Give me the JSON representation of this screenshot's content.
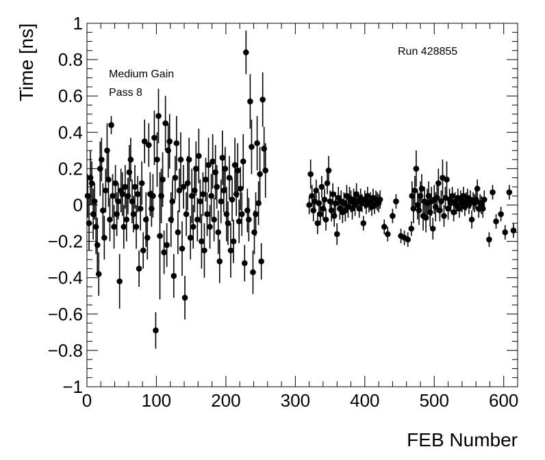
{
  "chart_data": {
    "type": "scatter",
    "xlabel": "FEB Number",
    "ylabel": "Time [ns]",
    "xlim": [
      0,
      620
    ],
    "ylim": [
      -1,
      1
    ],
    "x_tick_labels": [
      "0",
      "100",
      "200",
      "300",
      "400",
      "500",
      "600"
    ],
    "y_tick_labels": [
      "1",
      "0.8",
      "0.6",
      "0.4",
      "0.2",
      "0",
      "−0.2",
      "−0.4",
      "−0.6",
      "−0.8",
      "−1"
    ],
    "annotations": [
      "Medium Gain",
      "Pass 8",
      "Run 428855"
    ],
    "grid": false,
    "marker_color": "#000000",
    "series": [
      {
        "points": [
          [
            1,
            0.05,
            0.12
          ],
          [
            3,
            -0.1,
            0.15
          ],
          [
            5,
            0.15,
            0.15
          ],
          [
            7,
            0.12,
            0.12
          ],
          [
            9,
            -0.05,
            0.14
          ],
          [
            11,
            0.02,
            0.1
          ],
          [
            13,
            -0.12,
            0.15
          ],
          [
            15,
            -0.22,
            0.15
          ],
          [
            17,
            -0.38,
            0.12
          ],
          [
            19,
            0.2,
            0.15
          ],
          [
            21,
            0.25,
            0.12
          ],
          [
            23,
            -0.03,
            0.15
          ],
          [
            25,
            -0.18,
            0.12
          ],
          [
            27,
            0.08,
            0.12
          ],
          [
            29,
            0.3,
            0.15
          ],
          [
            31,
            0.14,
            0.15
          ],
          [
            33,
            -0.08,
            0.12
          ],
          [
            35,
            0.44,
            0.05
          ],
          [
            37,
            0.05,
            0.12
          ],
          [
            39,
            -0.12,
            0.12
          ],
          [
            41,
            0.12,
            0.1
          ],
          [
            43,
            -0.05,
            0.12
          ],
          [
            45,
            0.02,
            0.1
          ],
          [
            47,
            -0.42,
            0.15
          ],
          [
            49,
            0.08,
            0.12
          ],
          [
            51,
            0.06,
            0.12
          ],
          [
            53,
            -0.12,
            0.12
          ],
          [
            55,
            0.1,
            0.12
          ],
          [
            57,
            -0.08,
            0.12
          ],
          [
            59,
            0.05,
            0.1
          ],
          [
            61,
            0.18,
            0.15
          ],
          [
            63,
            0.25,
            0.12
          ],
          [
            65,
            0.02,
            0.12
          ],
          [
            67,
            -0.05,
            0.1
          ],
          [
            69,
            0.1,
            0.12
          ],
          [
            71,
            -0.12,
            0.12
          ],
          [
            73,
            0.06,
            0.1
          ],
          [
            75,
            -0.35,
            0.1
          ],
          [
            77,
            -0.02,
            0.12
          ],
          [
            79,
            0.12,
            0.12
          ],
          [
            81,
            -0.25,
            0.1
          ],
          [
            83,
            0.35,
            0.12
          ],
          [
            85,
            -0.08,
            0.15
          ],
          [
            87,
            -0.18,
            0.12
          ],
          [
            89,
            0.33,
            0.12
          ],
          [
            91,
            0.06,
            0.12
          ],
          [
            93,
            -0.02,
            0.1
          ],
          [
            95,
            0.05,
            0.12
          ],
          [
            97,
            0.37,
            0.15
          ],
          [
            99,
            -0.69,
            0.1
          ],
          [
            101,
            0.25,
            0.15
          ],
          [
            103,
            0.49,
            0.15
          ],
          [
            105,
            -0.17,
            0.35
          ],
          [
            107,
            0.05,
            0.15
          ],
          [
            109,
            0.14,
            0.15
          ],
          [
            111,
            -0.26,
            0.12
          ],
          [
            113,
            0.45,
            0.15
          ],
          [
            115,
            -0.22,
            0.12
          ],
          [
            117,
            0.3,
            0.15
          ],
          [
            119,
            0.35,
            0.15
          ],
          [
            121,
            -0.08,
            0.15
          ],
          [
            123,
            0.02,
            0.12
          ],
          [
            125,
            -0.39,
            0.12
          ],
          [
            127,
            0.15,
            0.12
          ],
          [
            129,
            0.34,
            0.15
          ],
          [
            131,
            -0.15,
            0.12
          ],
          [
            133,
            0.08,
            0.12
          ],
          [
            135,
            0.25,
            0.15
          ],
          [
            137,
            -0.24,
            0.15
          ],
          [
            139,
            0.1,
            0.12
          ],
          [
            141,
            -0.51,
            0.12
          ],
          [
            143,
            -0.05,
            0.12
          ],
          [
            145,
            0.12,
            0.15
          ],
          [
            147,
            0.25,
            0.12
          ],
          [
            149,
            -0.18,
            0.12
          ],
          [
            151,
            0.05,
            0.15
          ],
          [
            153,
            -0.12,
            0.12
          ],
          [
            155,
            0.08,
            0.12
          ],
          [
            157,
            0.2,
            0.15
          ],
          [
            159,
            -0.08,
            0.12
          ],
          [
            161,
            0.27,
            0.15
          ],
          [
            163,
            0.02,
            0.12
          ],
          [
            165,
            -0.2,
            0.15
          ],
          [
            167,
            0.06,
            0.12
          ],
          [
            169,
            -0.25,
            0.15
          ],
          [
            171,
            0.14,
            0.12
          ],
          [
            173,
            -0.05,
            0.12
          ],
          [
            175,
            0.22,
            0.15
          ],
          [
            177,
            -0.12,
            0.12
          ],
          [
            179,
            0.05,
            0.12
          ],
          [
            181,
            0.24,
            0.15
          ],
          [
            183,
            -0.08,
            0.12
          ],
          [
            185,
            0.18,
            0.15
          ],
          [
            187,
            0.1,
            0.12
          ],
          [
            189,
            -0.15,
            0.12
          ],
          [
            191,
            -0.31,
            0.12
          ],
          [
            193,
            0.02,
            0.12
          ],
          [
            195,
            0.26,
            0.15
          ],
          [
            197,
            0.08,
            0.12
          ],
          [
            199,
            0.2,
            0.12
          ],
          [
            201,
            -0.05,
            0.15
          ],
          [
            203,
            -0.1,
            0.12
          ],
          [
            205,
            0.15,
            0.12
          ],
          [
            207,
            -0.25,
            0.15
          ],
          [
            209,
            0.03,
            0.12
          ],
          [
            211,
            -0.2,
            0.12
          ],
          [
            213,
            0.22,
            0.15
          ],
          [
            215,
            0.06,
            0.12
          ],
          [
            217,
            0.19,
            0.15
          ],
          [
            219,
            -0.09,
            0.12
          ],
          [
            221,
            0.09,
            0.12
          ],
          [
            223,
            -0.05,
            0.12
          ],
          [
            225,
            0.24,
            0.15
          ],
          [
            227,
            -0.32,
            0.1
          ],
          [
            229,
            0.84,
            0.12
          ],
          [
            231,
            -0.03,
            0.12
          ],
          [
            233,
            -0.08,
            0.12
          ],
          [
            235,
            0.57,
            0.15
          ],
          [
            237,
            0.32,
            0.15
          ],
          [
            239,
            -0.37,
            0.12
          ],
          [
            241,
            -0.15,
            0.12
          ],
          [
            243,
            -0.05,
            0.12
          ],
          [
            245,
            0.34,
            0.15
          ],
          [
            247,
            0.01,
            0.12
          ],
          [
            249,
            0.17,
            0.15
          ],
          [
            251,
            -0.31,
            0.1
          ],
          [
            253,
            0.58,
            0.15
          ],
          [
            255,
            0.31,
            0.12
          ],
          [
            257,
            0.19,
            0.15
          ],
          [
            320,
            0.0,
            0.05
          ],
          [
            322,
            0.17,
            0.08
          ],
          [
            324,
            0.05,
            0.06
          ],
          [
            326,
            -0.03,
            0.06
          ],
          [
            328,
            0.02,
            0.06
          ],
          [
            330,
            0.08,
            0.06
          ],
          [
            332,
            -0.1,
            0.06
          ],
          [
            334,
            0.01,
            0.06
          ],
          [
            336,
            -0.05,
            0.06
          ],
          [
            338,
            0.1,
            0.06
          ],
          [
            340,
            -0.02,
            0.06
          ],
          [
            342,
            0.03,
            0.06
          ],
          [
            344,
            -0.08,
            0.06
          ],
          [
            346,
            0.12,
            0.06
          ],
          [
            348,
            0.19,
            0.08
          ],
          [
            350,
            0.02,
            0.06
          ],
          [
            352,
            -0.03,
            0.06
          ],
          [
            354,
            0.06,
            0.06
          ],
          [
            356,
            -0.06,
            0.06
          ],
          [
            358,
            0.01,
            0.06
          ],
          [
            360,
            -0.16,
            0.06
          ],
          [
            362,
            0.04,
            0.06
          ],
          [
            364,
            -0.02,
            0.06
          ],
          [
            366,
            0.02,
            0.06
          ],
          [
            368,
            -0.04,
            0.06
          ],
          [
            370,
            0.01,
            0.06
          ],
          [
            372,
            -0.03,
            0.06
          ],
          [
            374,
            0.05,
            0.06
          ],
          [
            376,
            -0.01,
            0.06
          ],
          [
            378,
            0.04,
            0.06
          ],
          [
            380,
            0.02,
            0.06
          ],
          [
            382,
            -0.02,
            0.06
          ],
          [
            384,
            0.03,
            0.06
          ],
          [
            386,
            0.0,
            0.06
          ],
          [
            388,
            0.06,
            0.06
          ],
          [
            390,
            0.02,
            0.05
          ],
          [
            392,
            -0.02,
            0.05
          ],
          [
            394,
            0.04,
            0.05
          ],
          [
            396,
            0.01,
            0.05
          ],
          [
            398,
            -0.1,
            0.04
          ],
          [
            400,
            0.03,
            0.05
          ],
          [
            402,
            0.0,
            0.05
          ],
          [
            404,
            0.05,
            0.05
          ],
          [
            406,
            0.01,
            0.05
          ],
          [
            408,
            0.02,
            0.05
          ],
          [
            410,
            -0.01,
            0.05
          ],
          [
            412,
            0.04,
            0.05
          ],
          [
            414,
            0.0,
            0.05
          ],
          [
            416,
            0.03,
            0.05
          ],
          [
            418,
            0.02,
            0.05
          ],
          [
            420,
            0.01,
            0.05
          ],
          [
            422,
            0.03,
            0.05
          ],
          [
            428,
            -0.12,
            0.04
          ],
          [
            433,
            -0.16,
            0.04
          ],
          [
            440,
            -0.06,
            0.04
          ],
          [
            445,
            0.02,
            0.04
          ],
          [
            452,
            -0.17,
            0.04
          ],
          [
            457,
            -0.18,
            0.04
          ],
          [
            462,
            -0.19,
            0.04
          ],
          [
            467,
            -0.13,
            0.04
          ],
          [
            468,
            0.05,
            0.08
          ],
          [
            470,
            -0.02,
            0.08
          ],
          [
            472,
            0.08,
            0.08
          ],
          [
            474,
            0.2,
            0.1
          ],
          [
            476,
            0.0,
            0.08
          ],
          [
            478,
            -0.03,
            0.08
          ],
          [
            480,
            0.05,
            0.08
          ],
          [
            482,
            0.09,
            0.08
          ],
          [
            484,
            -0.06,
            0.08
          ],
          [
            486,
            0.02,
            0.08
          ],
          [
            488,
            -0.07,
            0.08
          ],
          [
            490,
            0.01,
            0.08
          ],
          [
            492,
            0.05,
            0.08
          ],
          [
            494,
            -0.04,
            0.08
          ],
          [
            496,
            0.02,
            0.08
          ],
          [
            498,
            -0.13,
            0.06
          ],
          [
            500,
            0.03,
            0.08
          ],
          [
            502,
            -0.01,
            0.08
          ],
          [
            504,
            0.04,
            0.08
          ],
          [
            506,
            0.12,
            0.08
          ],
          [
            508,
            -0.03,
            0.06
          ],
          [
            510,
            0.02,
            0.06
          ],
          [
            512,
            0.15,
            0.1
          ],
          [
            514,
            -0.06,
            0.06
          ],
          [
            516,
            0.04,
            0.06
          ],
          [
            518,
            0.14,
            0.1
          ],
          [
            520,
            -0.02,
            0.06
          ],
          [
            522,
            0.03,
            0.06
          ],
          [
            524,
            0.01,
            0.05
          ],
          [
            526,
            0.05,
            0.05
          ],
          [
            528,
            -0.04,
            0.05
          ],
          [
            530,
            0.02,
            0.05
          ],
          [
            532,
            0.0,
            0.05
          ],
          [
            534,
            0.04,
            0.05
          ],
          [
            536,
            -0.02,
            0.05
          ],
          [
            538,
            0.03,
            0.05
          ],
          [
            540,
            0.01,
            0.05
          ],
          [
            542,
            0.05,
            0.05
          ],
          [
            544,
            -0.01,
            0.05
          ],
          [
            546,
            0.02,
            0.05
          ],
          [
            548,
            0.04,
            0.05
          ],
          [
            550,
            0.0,
            0.05
          ],
          [
            552,
            0.03,
            0.05
          ],
          [
            554,
            -0.08,
            0.05
          ],
          [
            556,
            0.02,
            0.05
          ],
          [
            558,
            0.01,
            0.05
          ],
          [
            560,
            0.03,
            0.05
          ],
          [
            562,
            0.09,
            0.05
          ],
          [
            564,
            -0.02,
            0.05
          ],
          [
            566,
            0.01,
            0.05
          ],
          [
            568,
            0.0,
            0.05
          ],
          [
            570,
            -0.02,
            0.05
          ],
          [
            572,
            0.03,
            0.05
          ],
          [
            579,
            -0.19,
            0.04
          ],
          [
            584,
            0.07,
            0.04
          ],
          [
            589,
            -0.09,
            0.04
          ],
          [
            596,
            -0.05,
            0.04
          ],
          [
            602,
            -0.15,
            0.04
          ],
          [
            608,
            0.07,
            0.04
          ],
          [
            614,
            -0.14,
            0.04
          ]
        ]
      }
    ]
  }
}
